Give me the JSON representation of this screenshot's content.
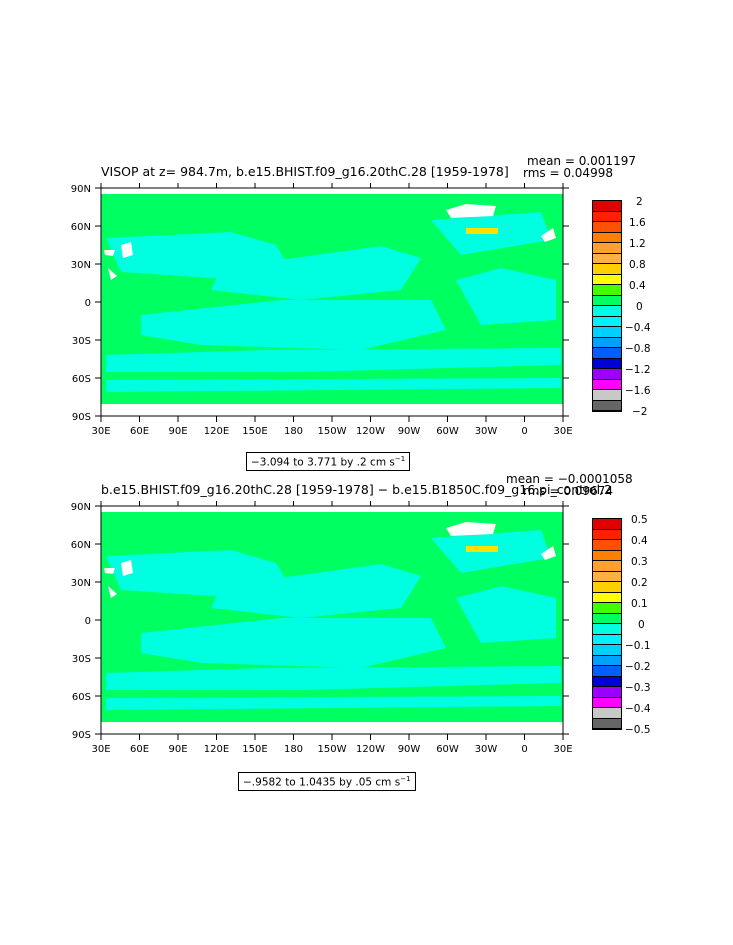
{
  "colors": {
    "ocean_zero": "#00ff60",
    "ocean_neg": "#00ffe0",
    "ocean_posdot": "#ffe000",
    "land": "#ffffff",
    "palette": [
      "#666666",
      "#c8c8c8",
      "#ff00ff",
      "#9a00ff",
      "#0000d8",
      "#0060ff",
      "#00a0ff",
      "#00d0ff",
      "#00f0ff",
      "#00ffe0",
      "#00ff60",
      "#40ff00",
      "#ffff00",
      "#ffd000",
      "#ffb040",
      "#ffa030",
      "#ff8000",
      "#ff5000",
      "#ff2000",
      "#e00000",
      "#c00000"
    ]
  },
  "panel1": {
    "title": "VISOP at z= 984.7m, b.e15.BHIST.f09_g16.20thC.28 [1959-1978]",
    "mean_text": "mean = 0.001197",
    "rms_text": "rms = 0.04998",
    "range_text": "−3.094 to 3.771 by .2 cm s",
    "range_sup": "−1",
    "legend": [
      "2",
      "1.6",
      "1.2",
      "0.8",
      "0.4",
      "0",
      "−0.4",
      "−0.8",
      "−1.2",
      "−1.6",
      "−2"
    ],
    "chart_data": {
      "type": "heatmap",
      "variable": "VISOP",
      "depth": "984.7m",
      "case": "b.e15.BHIST.f09_g16.20thC.28",
      "period": "1959-1978",
      "units": "cm s-1",
      "mean": 0.001197,
      "rms": 0.04998,
      "data_min": -3.094,
      "data_max": 3.771,
      "contour_interval": 0.2,
      "color_levels": [
        -2,
        -1.8,
        -1.6,
        -1.4,
        -1.2,
        -1,
        -0.8,
        -0.6,
        -0.4,
        -0.2,
        0,
        0.2,
        0.4,
        0.6,
        0.8,
        1,
        1.2,
        1.4,
        1.6,
        1.8,
        2
      ],
      "x_ticks": [
        "30E",
        "60E",
        "90E",
        "120E",
        "150E",
        "180",
        "150W",
        "120W",
        "90W",
        "60W",
        "30W",
        "0",
        "30E"
      ],
      "y_ticks": [
        "90N",
        "60N",
        "30N",
        "0",
        "30S",
        "60S",
        "90S"
      ]
    }
  },
  "panel2": {
    "title": "b.e15.BHIST.f09_g16.20thC.28 [1959-1978] − b.e15.B1850C.f09_g16.pi_control.2",
    "mean_text": "mean = −0.0001058",
    "rms_text": "rms = 0.09674",
    "range_text": "−.9582 to 1.0435 by .05 cm s",
    "range_sup": "−1",
    "legend": [
      "0.5",
      "0.4",
      "0.3",
      "0.2",
      "0.1",
      "0",
      "−0.1",
      "−0.2",
      "−0.3",
      "−0.4",
      "−0.5"
    ],
    "chart_data": {
      "type": "heatmap",
      "variable": "VISOP difference",
      "case_a": "b.e15.BHIST.f09_g16.20thC.28",
      "period": "1959-1978",
      "case_b": "b.e15.B1850C.f09_g16.pi_control.2",
      "units": "cm s-1",
      "mean": -0.0001058,
      "rms": 0.09674,
      "data_min": -0.9582,
      "data_max": 1.0435,
      "contour_interval": 0.05,
      "color_levels": [
        -0.5,
        -0.45,
        -0.4,
        -0.35,
        -0.3,
        -0.25,
        -0.2,
        -0.15,
        -0.1,
        -0.05,
        0,
        0.05,
        0.1,
        0.15,
        0.2,
        0.25,
        0.3,
        0.35,
        0.4,
        0.45,
        0.5
      ],
      "x_ticks": [
        "30E",
        "60E",
        "90E",
        "120E",
        "150E",
        "180",
        "150W",
        "120W",
        "90W",
        "60W",
        "30W",
        "0",
        "30E"
      ],
      "y_ticks": [
        "90N",
        "60N",
        "30N",
        "0",
        "30S",
        "60S",
        "90S"
      ]
    }
  }
}
